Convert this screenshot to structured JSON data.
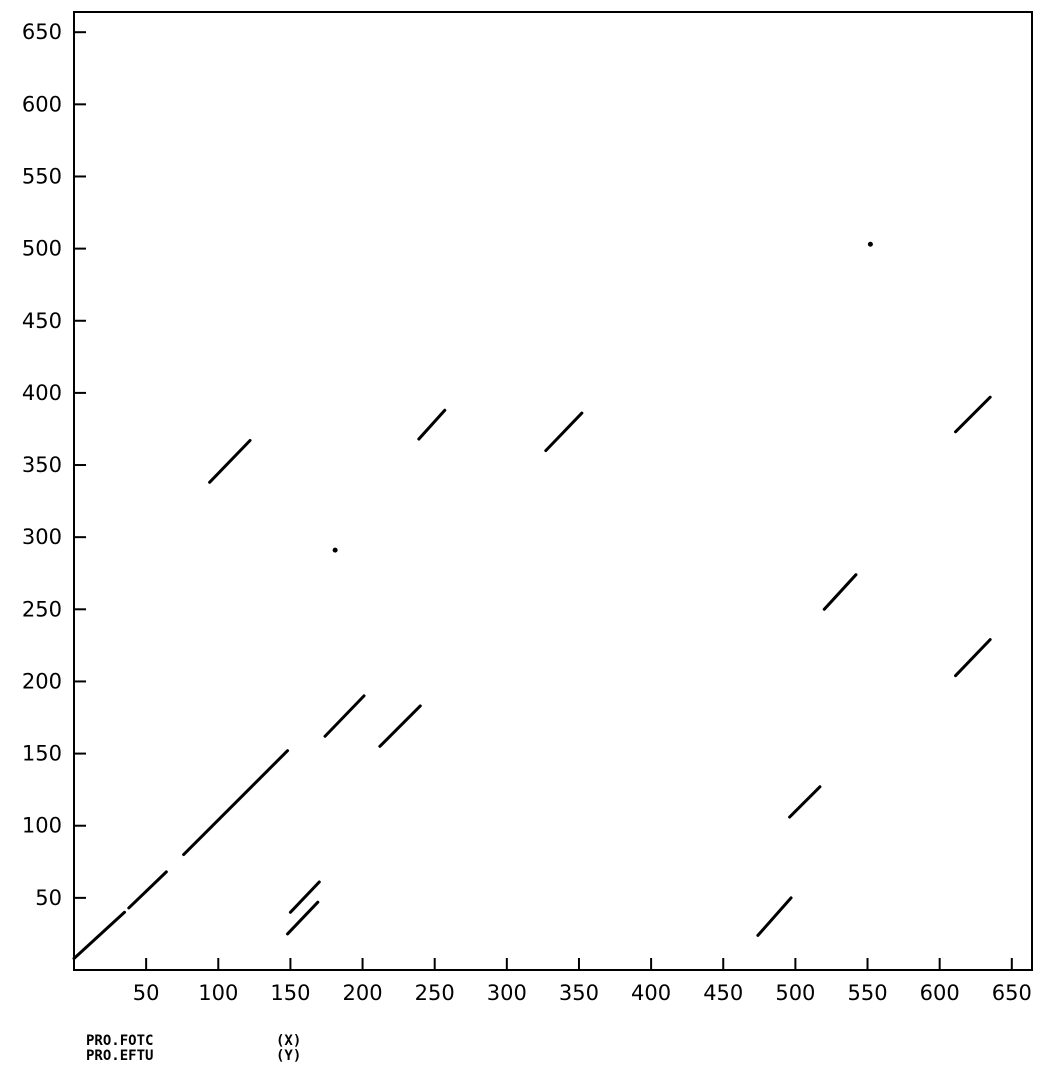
{
  "chart_data": {
    "type": "scatter",
    "title": "",
    "xlabel": "PRO.FOTC",
    "ylabel": "PRO.EFTU",
    "xlim": [
      0,
      664
    ],
    "ylim": [
      0,
      664
    ],
    "x_ticks": [
      50,
      100,
      150,
      200,
      250,
      300,
      350,
      400,
      450,
      500,
      550,
      600,
      650
    ],
    "y_ticks": [
      50,
      100,
      150,
      200,
      250,
      300,
      350,
      400,
      450,
      500,
      550,
      600,
      650
    ],
    "grid": false,
    "segments": [
      {
        "x1": 0,
        "y1": 8,
        "x2": 35,
        "y2": 40
      },
      {
        "x1": 38,
        "y1": 43,
        "x2": 64,
        "y2": 68
      },
      {
        "x1": 76,
        "y1": 80,
        "x2": 148,
        "y2": 152
      },
      {
        "x1": 150,
        "y1": 40,
        "x2": 170,
        "y2": 61
      },
      {
        "x1": 148,
        "y1": 25,
        "x2": 169,
        "y2": 47
      },
      {
        "x1": 94,
        "y1": 338,
        "x2": 122,
        "y2": 367
      },
      {
        "x1": 174,
        "y1": 162,
        "x2": 201,
        "y2": 190
      },
      {
        "x1": 212,
        "y1": 155,
        "x2": 240,
        "y2": 183
      },
      {
        "x1": 239,
        "y1": 368,
        "x2": 257,
        "y2": 388
      },
      {
        "x1": 327,
        "y1": 360,
        "x2": 352,
        "y2": 386
      },
      {
        "x1": 474,
        "y1": 24,
        "x2": 497,
        "y2": 50
      },
      {
        "x1": 496,
        "y1": 106,
        "x2": 517,
        "y2": 127
      },
      {
        "x1": 520,
        "y1": 250,
        "x2": 542,
        "y2": 274
      },
      {
        "x1": 611,
        "y1": 204,
        "x2": 635,
        "y2": 229
      },
      {
        "x1": 611,
        "y1": 373,
        "x2": 635,
        "y2": 397
      }
    ],
    "points": [
      {
        "x": 181,
        "y": 291
      },
      {
        "x": 552,
        "y": 503
      }
    ]
  },
  "captions": [
    {
      "name": "PRO.FOTC",
      "axis": "(X)"
    },
    {
      "name": "PRO.EFTU",
      "axis": "(Y)"
    }
  ],
  "colors": {
    "ink": "#000000",
    "background": "#ffffff"
  }
}
